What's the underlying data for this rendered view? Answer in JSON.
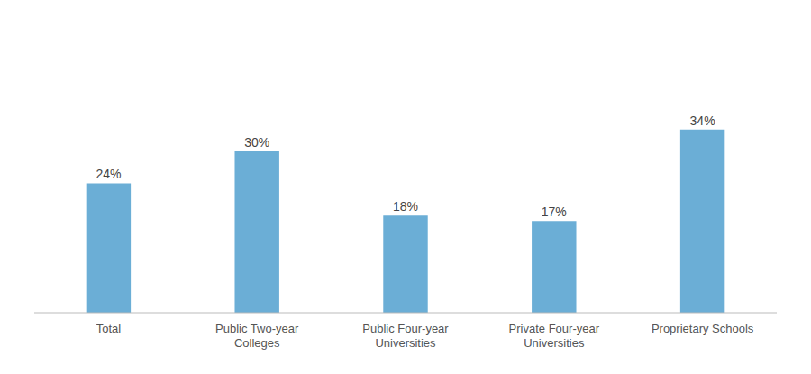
{
  "chart_data": {
    "type": "bar",
    "categories": [
      "Total",
      "Public Two-year\nColleges",
      "Public Four-year\nUniversities",
      "Private Four-year\nUniversities",
      "Proprietary Schools"
    ],
    "values": [
      24,
      30,
      18,
      17,
      34
    ],
    "value_labels": [
      "24%",
      "30%",
      "18%",
      "17%",
      "34%"
    ],
    "data_labels": true,
    "color": "#6BAED6",
    "ylim": [
      0,
      50
    ],
    "grid": false,
    "tick_labels": "x"
  }
}
